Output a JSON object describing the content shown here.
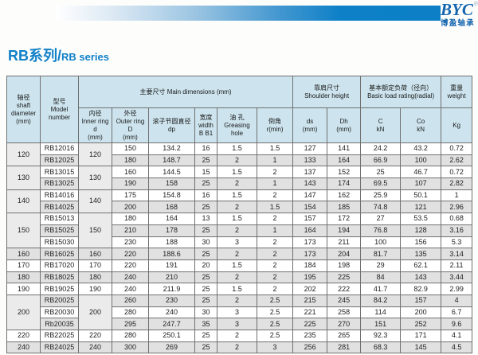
{
  "brand": {
    "logo_text": "BYC",
    "logo_reg": "®",
    "logo_sub": "博盈轴承",
    "bar_color": "#0d80c7",
    "logo_color": "#1465ae"
  },
  "title": {
    "cn": "RB系列/",
    "en": "RB series",
    "color": "#1080c8"
  },
  "table": {
    "group_header": {
      "main": "主要尺寸 Main dimensions (mm)",
      "shoulder": [
        "靠肩尺寸",
        "Shoulder height"
      ],
      "rating": [
        "基本额定负荷（径向）",
        "Basic load rating(radial)"
      ],
      "weight": [
        "重量",
        "weight"
      ]
    },
    "columns": {
      "shaft": [
        "轴径",
        "shaft",
        "diameter",
        "(mm)"
      ],
      "model": [
        "型号",
        "Model",
        "number"
      ],
      "inner": [
        "内径",
        "Inner ring",
        "d",
        "(mm)"
      ],
      "outer": [
        "外径",
        "Outer ring",
        "D",
        "(mm)"
      ],
      "dp": [
        "滚子节圆直径",
        "dp"
      ],
      "width": [
        "宽度",
        "width",
        "B B1"
      ],
      "hole": [
        "油 孔",
        "Greasing",
        "hole"
      ],
      "r": [
        "倒角",
        "r(min)"
      ],
      "ds": [
        "ds",
        "(mm)"
      ],
      "Dh": [
        "Dh",
        "(mm)"
      ],
      "C": [
        "C",
        "kN"
      ],
      "Co": [
        "Co",
        "kN"
      ],
      "kg": [
        "Kg"
      ]
    },
    "groups": [
      {
        "shaft": "120",
        "inner": "120",
        "rows": [
          [
            "RB12016",
            "150",
            "134.2",
            "16",
            "1.5",
            "1.5",
            "127",
            "141",
            "24.2",
            "43.2",
            "0.72"
          ],
          [
            "RB12025",
            "180",
            "148.7",
            "25",
            "2",
            "1",
            "133",
            "164",
            "66.9",
            "100",
            "2.62"
          ]
        ]
      },
      {
        "shaft": "130",
        "inner": "130",
        "rows": [
          [
            "RB13015",
            "160",
            "144.5",
            "15",
            "1.5",
            "2",
            "137",
            "152",
            "25",
            "46.7",
            "0.72"
          ],
          [
            "RB13025",
            "190",
            "158",
            "25",
            "2",
            "1",
            "143",
            "174",
            "69.5",
            "107",
            "2.82"
          ]
        ]
      },
      {
        "shaft": "140",
        "inner": "140",
        "rows": [
          [
            "RB14016",
            "175",
            "154.8",
            "16",
            "1.5",
            "2",
            "147",
            "162",
            "25.9",
            "50.1",
            "1"
          ],
          [
            "RB14025",
            "200",
            "168",
            "25",
            "2",
            "1.5",
            "154",
            "185",
            "74.8",
            "121",
            "2.96"
          ]
        ]
      },
      {
        "shaft": "150",
        "inner": "150",
        "rows": [
          [
            "RB15013",
            "180",
            "164",
            "13",
            "1.5",
            "2",
            "157",
            "172",
            "27",
            "53.5",
            "0.68"
          ],
          [
            "RB15025",
            "210",
            "178",
            "25",
            "2",
            "1",
            "164",
            "194",
            "76.8",
            "128",
            "3.16"
          ],
          [
            "RB15030",
            "230",
            "188",
            "30",
            "3",
            "2",
            "173",
            "211",
            "100",
            "156",
            "5.3"
          ]
        ]
      },
      {
        "shaft": "160",
        "inner": "160",
        "rows": [
          [
            "RB16025",
            "220",
            "188.6",
            "25",
            "2",
            "2",
            "173",
            "204",
            "81.7",
            "135",
            "3.14"
          ]
        ]
      },
      {
        "shaft": "170",
        "inner": "170",
        "rows": [
          [
            "RB17020",
            "220",
            "191",
            "20",
            "1.5",
            "2",
            "184",
            "198",
            "29",
            "62.1",
            "2.11"
          ]
        ]
      },
      {
        "shaft": "180",
        "inner": "180",
        "rows": [
          [
            "RB18025",
            "240",
            "210",
            "25",
            "2",
            "2",
            "195",
            "225",
            "84",
            "143",
            "3.44"
          ]
        ]
      },
      {
        "shaft": "190",
        "inner": "190",
        "rows": [
          [
            "RB19025",
            "240",
            "211.9",
            "25",
            "1.5",
            "2",
            "202",
            "222",
            "41.7",
            "82.9",
            "2.99"
          ]
        ]
      },
      {
        "shaft": "200",
        "inner": "200",
        "rows": [
          [
            "RB20025",
            "260",
            "230",
            "25",
            "2",
            "2.5",
            "215",
            "245",
            "84.2",
            "157",
            "4"
          ],
          [
            "RB20030",
            "280",
            "240",
            "30",
            "3",
            "2.5",
            "221",
            "258",
            "114",
            "200",
            "6.7"
          ],
          [
            "Rb20035",
            "295",
            "247.7",
            "35",
            "3",
            "2.5",
            "225",
            "270",
            "151",
            "252",
            "9.6"
          ]
        ]
      },
      {
        "shaft": "220",
        "inner": "220",
        "rows": [
          [
            "RB22025",
            "280",
            "250.1",
            "25",
            "2",
            "2.5",
            "235",
            "265",
            "92.3",
            "171",
            "4.1"
          ]
        ]
      },
      {
        "shaft": "240",
        "inner": "240",
        "rows": [
          [
            "RB24025",
            "300",
            "269",
            "25",
            "2",
            "3",
            "256",
            "281",
            "68.3",
            "145",
            "4.5"
          ]
        ]
      }
    ],
    "colors": {
      "header_bg": "#cde4ee",
      "row_white": "#ffffff",
      "row_gray": "#e1e1e1",
      "merged_bg": "#ebebeb",
      "border": "#707070"
    }
  }
}
